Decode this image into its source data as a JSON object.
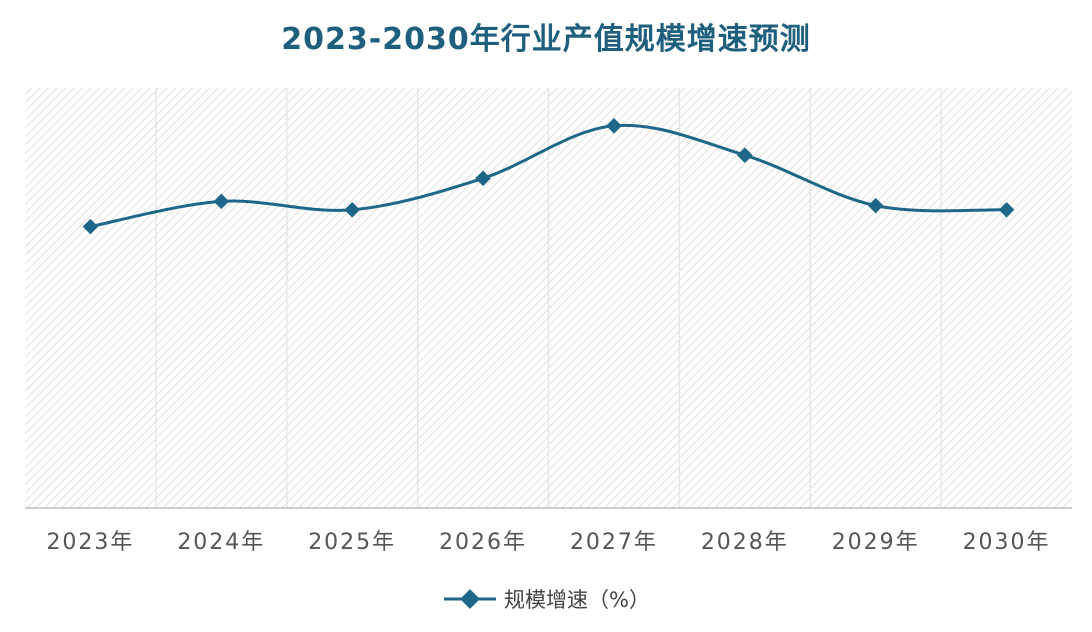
{
  "chart_data": {
    "type": "line",
    "title": "2023-2030年行业产值规模增速预测",
    "categories": [
      "2023年",
      "2024年",
      "2025年",
      "2026年",
      "2027年",
      "2028年",
      "2029年",
      "2030年"
    ],
    "series": [
      {
        "name": "规模增速（%）",
        "values": [
          6.7,
          7.3,
          7.1,
          7.85,
          9.1,
          8.4,
          7.2,
          7.1
        ],
        "color": "#1f6788"
      }
    ],
    "ylim": [
      0,
      10
    ],
    "y_tick_labels_shown": false,
    "grid": "vertical",
    "plot_background": "diagonal-hatch",
    "legend": "bottom",
    "marker": "diamond",
    "smooth": true
  },
  "colors": {
    "title": "#1f5f7e",
    "line": "#1f6788",
    "hatch": "#d8d8d8",
    "gridline": "#e6e6e6",
    "axis": "#bfbfbf"
  }
}
